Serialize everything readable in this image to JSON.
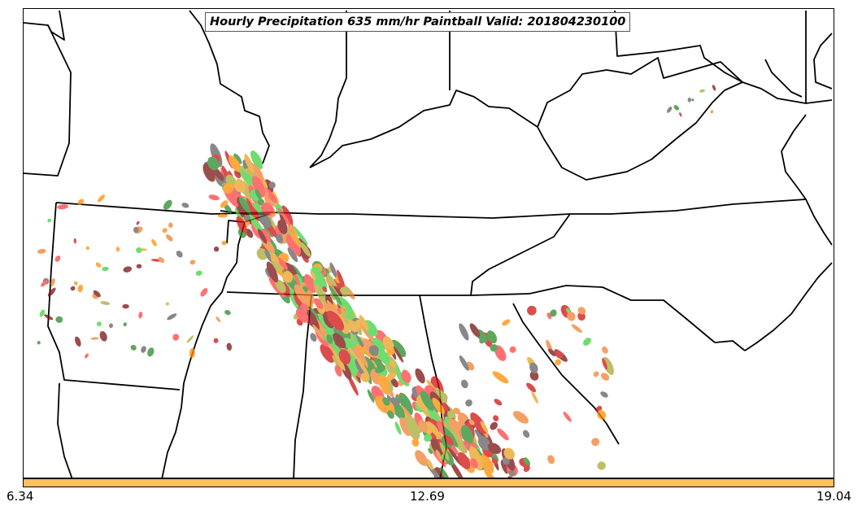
{
  "map": {
    "title": "Hourly Precipitation 635 mm/hr Paintball Valid: 201804230100",
    "colors": {
      "land": "#ffffff",
      "border": "#000000",
      "paintball": [
        "#f08030",
        "#ff4040",
        "#e8a020",
        "#2a8a2a",
        "#a8a830",
        "#606060",
        "#7a1010",
        "#40d040",
        "#ff8c00",
        "#d01010"
      ]
    },
    "colorbar": {
      "color": "#ffbf60",
      "tick_labels": [
        "6.34",
        "12.69",
        "19.04"
      ]
    }
  }
}
